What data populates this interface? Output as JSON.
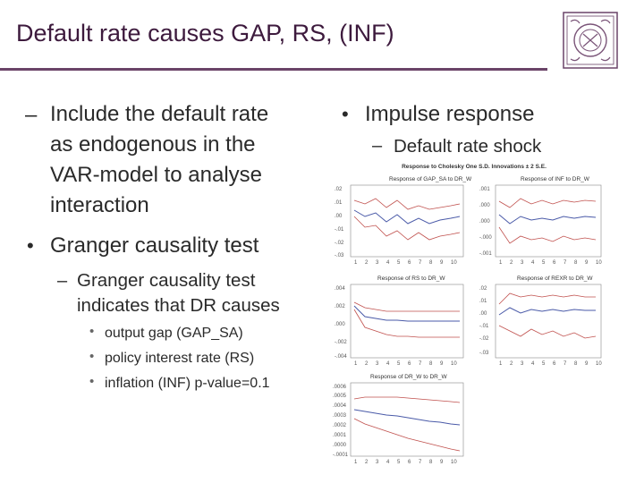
{
  "slide": {
    "title": "Default rate causes GAP, RS, (INF)",
    "left": {
      "item1": "Include the default rate as endogenous in the VAR-model to analyse interaction",
      "item1_lines": [
        "Include the default rate",
        "as endogenous in the",
        "VAR-model to analyse",
        "interaction"
      ],
      "item2": "Granger causality test",
      "item2_sub": "Granger causality test indicates that DR causes",
      "item2_sub_lines": [
        "Granger causality test",
        "indicates that DR causes"
      ],
      "item2_points": [
        "output gap (GAP_SA)",
        "policy interest rate (RS)",
        "inflation (INF) p-value=0.1"
      ]
    },
    "right": {
      "item1": "Impulse response",
      "item1_sub": "Default rate shock",
      "figure_title": "Response to Cholesky One S.D. Innovations ± 2 S.E.",
      "panels": [
        {
          "title": "Response of GAP_SA to DR_W",
          "y_ticks": [
            ".02",
            ".01",
            ".00",
            "-.01",
            "-.02",
            "-.03"
          ]
        },
        {
          "title": "Response of INF to DR_W",
          "y_ticks": [
            ".001",
            ".000",
            ".000",
            "-.000",
            "-.001"
          ]
        },
        {
          "title": "Response of RS to DR_W",
          "y_ticks": [
            ".004",
            ".002",
            ".000",
            "-.002",
            "-.004"
          ]
        },
        {
          "title": "Response of REXR to DR_W",
          "y_ticks": [
            ".02",
            ".01",
            ".00",
            "-.01",
            "-.02",
            "-.03"
          ]
        },
        {
          "title": "Response of DR_W to DR_W",
          "y_ticks": [
            ".0006",
            ".0005",
            ".0004",
            ".0003",
            ".0002",
            ".0001",
            ".0000",
            "-.0001"
          ]
        }
      ],
      "x_ticks": [
        "1",
        "2",
        "3",
        "4",
        "5",
        "6",
        "7",
        "8",
        "9",
        "10"
      ]
    }
  },
  "colors": {
    "title": "#3d1a3d",
    "rule": "#6a4468",
    "response": "#4a5aa8",
    "bands": "#c0504d"
  },
  "icons": {
    "logo": "university-seal-icon",
    "bullet": "dash-and-dot-markers"
  }
}
